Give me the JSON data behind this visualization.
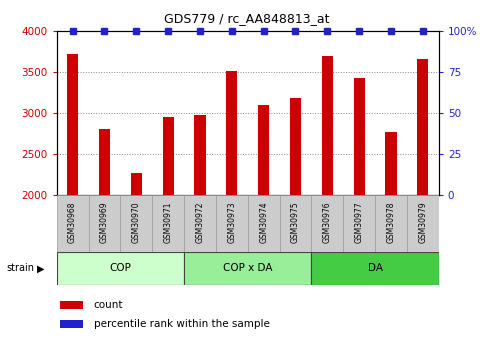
{
  "title": "GDS779 / rc_AA848813_at",
  "samples": [
    "GSM30968",
    "GSM30969",
    "GSM30970",
    "GSM30971",
    "GSM30972",
    "GSM30973",
    "GSM30974",
    "GSM30975",
    "GSM30976",
    "GSM30977",
    "GSM30978",
    "GSM30979"
  ],
  "counts": [
    3720,
    2810,
    2270,
    2950,
    2970,
    3510,
    3100,
    3180,
    3690,
    3430,
    2770,
    3660
  ],
  "percentile_ranks": [
    100,
    100,
    100,
    100,
    100,
    100,
    100,
    100,
    100,
    100,
    100,
    100
  ],
  "bar_color": "#cc0000",
  "dot_color": "#2222cc",
  "ylim_left": [
    2000,
    4000
  ],
  "ylim_right": [
    0,
    100
  ],
  "yticks_left": [
    2000,
    2500,
    3000,
    3500,
    4000
  ],
  "yticks_right": [
    0,
    25,
    50,
    75,
    100
  ],
  "group_data": [
    {
      "label": "COP",
      "start": 0,
      "end": 3,
      "color": "#ccffcc"
    },
    {
      "label": "COP x DA",
      "start": 4,
      "end": 7,
      "color": "#99ee99"
    },
    {
      "label": "DA",
      "start": 8,
      "end": 11,
      "color": "#44cc44"
    }
  ],
  "left_tick_color": "#cc0000",
  "right_tick_color": "#2222cc",
  "bar_width": 0.35,
  "dot_size": 5,
  "legend_count_color": "#cc0000",
  "legend_percentile_color": "#2222cc",
  "grid_color": "#888888",
  "grid_style": "dotted",
  "sample_box_color": "#cccccc",
  "sample_box_edge": "#999999"
}
